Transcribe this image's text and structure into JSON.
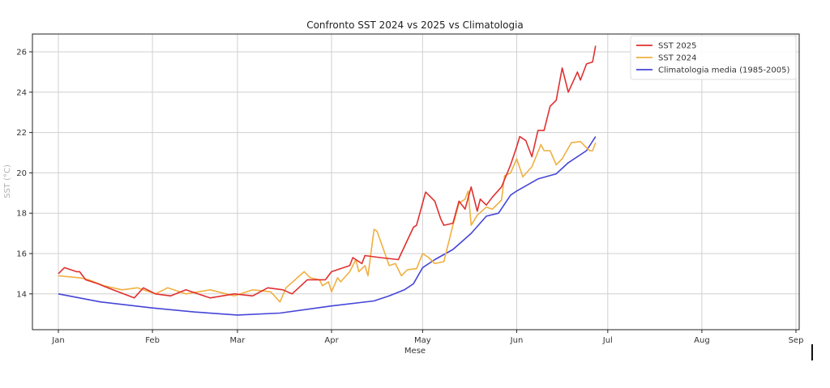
{
  "chart_data": {
    "type": "line",
    "title": "Confronto SST 2024 vs 2025 vs Climatologia",
    "xlabel": "Mese",
    "ylabel": "SST (°C)",
    "x_ticks": [
      "Jan",
      "Feb",
      "Mar",
      "Apr",
      "May",
      "Jun",
      "Jul",
      "Aug",
      "Sep"
    ],
    "y_ticks": [
      14,
      16,
      18,
      20,
      22,
      24,
      26
    ],
    "xlim": [
      "01-01",
      "09-01"
    ],
    "ylim": [
      12.1,
      26.9
    ],
    "grid": true,
    "legend_position": "top-right",
    "series": [
      {
        "name": "SST 2025",
        "color": "#e03030",
        "points": [
          [
            "01-01",
            15.0
          ],
          [
            "01-03",
            15.3
          ],
          [
            "01-07",
            15.1
          ],
          [
            "01-08",
            15.1
          ],
          [
            "01-10",
            14.7
          ],
          [
            "01-14",
            14.5
          ],
          [
            "01-19",
            14.2
          ],
          [
            "01-26",
            13.8
          ],
          [
            "01-29",
            14.3
          ],
          [
            "02-02",
            14.0
          ],
          [
            "02-07",
            13.9
          ],
          [
            "02-12",
            14.2
          ],
          [
            "02-20",
            13.8
          ],
          [
            "02-28",
            14.0
          ],
          [
            "03-06",
            13.9
          ],
          [
            "03-11",
            14.3
          ],
          [
            "03-16",
            14.2
          ],
          [
            "03-19",
            14.0
          ],
          [
            "03-24",
            14.7
          ],
          [
            "03-30",
            14.7
          ],
          [
            "04-01",
            15.1
          ],
          [
            "04-07",
            15.4
          ],
          [
            "04-08",
            15.8
          ],
          [
            "04-11",
            15.5
          ],
          [
            "04-12",
            15.9
          ],
          [
            "04-17",
            15.8
          ],
          [
            "04-23",
            15.7
          ],
          [
            "04-28",
            17.3
          ],
          [
            "04-29",
            17.4
          ],
          [
            "05-02",
            19.05
          ],
          [
            "05-05",
            18.6
          ],
          [
            "05-07",
            17.7
          ],
          [
            "05-08",
            17.4
          ],
          [
            "05-11",
            17.5
          ],
          [
            "05-13",
            18.6
          ],
          [
            "05-15",
            18.2
          ],
          [
            "05-17",
            19.3
          ],
          [
            "05-19",
            18.1
          ],
          [
            "05-20",
            18.7
          ],
          [
            "05-22",
            18.4
          ],
          [
            "05-24",
            18.8
          ],
          [
            "05-27",
            19.3
          ],
          [
            "05-30",
            20.4
          ],
          [
            "06-01",
            21.3
          ],
          [
            "06-02",
            21.8
          ],
          [
            "06-04",
            21.6
          ],
          [
            "06-06",
            20.8
          ],
          [
            "06-08",
            22.1
          ],
          [
            "06-10",
            22.1
          ],
          [
            "06-12",
            23.3
          ],
          [
            "06-14",
            23.6
          ],
          [
            "06-16",
            25.2
          ],
          [
            "06-18",
            24.0
          ],
          [
            "06-21",
            25.0
          ],
          [
            "06-22",
            24.6
          ],
          [
            "06-24",
            25.4
          ],
          [
            "06-26",
            25.5
          ],
          [
            "06-27",
            26.3
          ]
        ]
      },
      {
        "name": "SST 2024",
        "color": "#f0b040",
        "points": [
          [
            "01-01",
            14.9
          ],
          [
            "01-08",
            14.8
          ],
          [
            "01-11",
            14.7
          ],
          [
            "01-16",
            14.4
          ],
          [
            "01-22",
            14.2
          ],
          [
            "01-27",
            14.3
          ],
          [
            "02-02",
            14.0
          ],
          [
            "02-06",
            14.3
          ],
          [
            "02-12",
            14.0
          ],
          [
            "02-20",
            14.2
          ],
          [
            "02-28",
            13.9
          ],
          [
            "03-06",
            14.2
          ],
          [
            "03-12",
            14.1
          ],
          [
            "03-15",
            13.6
          ],
          [
            "03-17",
            14.3
          ],
          [
            "03-23",
            15.1
          ],
          [
            "03-25",
            14.8
          ],
          [
            "03-28",
            14.7
          ],
          [
            "03-29",
            14.4
          ],
          [
            "03-31",
            14.6
          ],
          [
            "04-01",
            14.1
          ],
          [
            "04-03",
            14.8
          ],
          [
            "04-04",
            14.6
          ],
          [
            "04-07",
            15.1
          ],
          [
            "04-09",
            15.7
          ],
          [
            "04-10",
            15.1
          ],
          [
            "04-12",
            15.4
          ],
          [
            "04-13",
            14.9
          ],
          [
            "04-15",
            17.2
          ],
          [
            "04-16",
            17.1
          ],
          [
            "04-20",
            15.4
          ],
          [
            "04-22",
            15.5
          ],
          [
            "04-24",
            14.9
          ],
          [
            "04-26",
            15.2
          ],
          [
            "04-29",
            15.25
          ],
          [
            "05-01",
            16.0
          ],
          [
            "05-03",
            15.8
          ],
          [
            "05-05",
            15.5
          ],
          [
            "05-08",
            15.6
          ],
          [
            "05-09",
            16.2
          ],
          [
            "05-11",
            17.4
          ],
          [
            "05-13",
            18.5
          ],
          [
            "05-15",
            18.7
          ],
          [
            "05-16",
            19.1
          ],
          [
            "05-17",
            17.4
          ],
          [
            "05-19",
            17.9
          ],
          [
            "05-22",
            18.3
          ],
          [
            "05-24",
            18.2
          ],
          [
            "05-27",
            18.65
          ],
          [
            "05-28",
            19.85
          ],
          [
            "05-30",
            20.0
          ],
          [
            "06-01",
            20.7
          ],
          [
            "06-03",
            19.8
          ],
          [
            "06-06",
            20.3
          ],
          [
            "06-09",
            21.4
          ],
          [
            "06-10",
            21.1
          ],
          [
            "06-12",
            21.1
          ],
          [
            "06-14",
            20.4
          ],
          [
            "06-16",
            20.7
          ],
          [
            "06-19",
            21.5
          ],
          [
            "06-22",
            21.55
          ],
          [
            "06-25",
            21.1
          ],
          [
            "06-26",
            21.1
          ],
          [
            "06-27",
            21.5
          ]
        ]
      },
      {
        "name": "Climatologia media (1985-2005)",
        "color": "#4545d8",
        "points": [
          [
            "01-01",
            14.0
          ],
          [
            "01-15",
            13.6
          ],
          [
            "02-01",
            13.3
          ],
          [
            "02-15",
            13.1
          ],
          [
            "03-01",
            12.95
          ],
          [
            "03-15",
            13.05
          ],
          [
            "04-01",
            13.4
          ],
          [
            "04-15",
            13.65
          ],
          [
            "04-20",
            13.9
          ],
          [
            "04-25",
            14.2
          ],
          [
            "04-28",
            14.5
          ],
          [
            "05-01",
            15.3
          ],
          [
            "05-05",
            15.7
          ],
          [
            "05-11",
            16.2
          ],
          [
            "05-17",
            17.0
          ],
          [
            "05-22",
            17.85
          ],
          [
            "05-26",
            18.0
          ],
          [
            "05-30",
            18.9
          ],
          [
            "06-01",
            19.1
          ],
          [
            "06-08",
            19.7
          ],
          [
            "06-14",
            19.95
          ],
          [
            "06-18",
            20.5
          ],
          [
            "06-24",
            21.1
          ],
          [
            "06-27",
            21.8
          ]
        ]
      }
    ]
  }
}
